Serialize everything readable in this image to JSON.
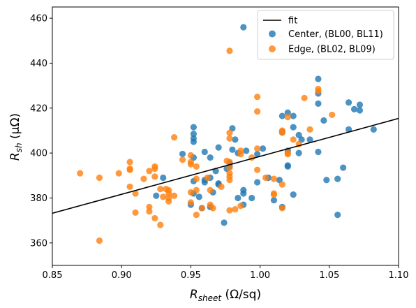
{
  "chart_data": {
    "type": "scatter",
    "xlabel_base": "R",
    "xlabel_sub": "sheet",
    "xlabel_unit": " (Ω/sq)",
    "ylabel_base": "R",
    "ylabel_sub": "sh",
    "ylabel_unit": " (μΩ)",
    "xlim": [
      0.85,
      1.1
    ],
    "ylim": [
      350,
      465
    ],
    "xticks": [
      "0.85",
      "0.90",
      "0.95",
      "1.00",
      "1.05",
      "1.10"
    ],
    "yticks": [
      "360",
      "380",
      "400",
      "420",
      "440",
      "460"
    ],
    "xtick_values": [
      0.85,
      0.9,
      0.95,
      1.0,
      1.05,
      1.1
    ],
    "ytick_values": [
      360,
      380,
      400,
      420,
      440,
      460
    ],
    "grid": false,
    "legend_position": "top-right",
    "fit": {
      "name": "fit",
      "color": "#000000",
      "points": [
        [
          0.85,
          373.2
        ],
        [
          1.1,
          415.4
        ]
      ]
    },
    "series": [
      {
        "name": "Center, (BL00, BL11)",
        "color": "#1f77b4",
        "points": [
          [
            0.925,
            381
          ],
          [
            0.93,
            389
          ],
          [
            0.944,
            399.6
          ],
          [
            0.95,
            377
          ],
          [
            0.952,
            411.5
          ],
          [
            0.952,
            408.5
          ],
          [
            0.952,
            406.5
          ],
          [
            0.952,
            405
          ],
          [
            0.952,
            398
          ],
          [
            0.952,
            387.5
          ],
          [
            0.952,
            382
          ],
          [
            0.956,
            380.5
          ],
          [
            0.958,
            375.5
          ],
          [
            0.96,
            400.5
          ],
          [
            0.96,
            388
          ],
          [
            0.96,
            387
          ],
          [
            0.964,
            398
          ],
          [
            0.964,
            389
          ],
          [
            0.964,
            376
          ],
          [
            0.966,
            382.5
          ],
          [
            0.968,
            392
          ],
          [
            0.97,
            386
          ],
          [
            0.97,
            386.5
          ],
          [
            0.97,
            402.5
          ],
          [
            0.974,
            369
          ],
          [
            0.976,
            393
          ],
          [
            0.978,
            395.5
          ],
          [
            0.978,
            394
          ],
          [
            0.98,
            411
          ],
          [
            0.98,
            401.5
          ],
          [
            0.982,
            406
          ],
          [
            0.984,
            380
          ],
          [
            0.984,
            400
          ],
          [
            0.988,
            456
          ],
          [
            0.988,
            383.5
          ],
          [
            0.988,
            382
          ],
          [
            0.988,
            377
          ],
          [
            0.99,
            401
          ],
          [
            0.994,
            380
          ],
          [
            0.998,
            387
          ],
          [
            0.998,
            399.5
          ],
          [
            1.002,
            402
          ],
          [
            1.006,
            389
          ],
          [
            1.01,
            379
          ],
          [
            1.014,
            388
          ],
          [
            1.016,
            416.5
          ],
          [
            1.016,
            409.5
          ],
          [
            1.016,
            376
          ],
          [
            1.02,
            418
          ],
          [
            1.02,
            401
          ],
          [
            1.02,
            394
          ],
          [
            1.02,
            394.5
          ],
          [
            1.024,
            416.5
          ],
          [
            1.024,
            411.5
          ],
          [
            1.024,
            381.5
          ],
          [
            1.028,
            408
          ],
          [
            1.028,
            400
          ],
          [
            1.03,
            406
          ],
          [
            1.036,
            406
          ],
          [
            1.042,
            433
          ],
          [
            1.042,
            426.5
          ],
          [
            1.042,
            422
          ],
          [
            1.042,
            400.5
          ],
          [
            1.046,
            414.5
          ],
          [
            1.048,
            388
          ],
          [
            1.056,
            388.5
          ],
          [
            1.056,
            372.5
          ],
          [
            1.06,
            393.5
          ],
          [
            1.064,
            422.5
          ],
          [
            1.064,
            410.5
          ],
          [
            1.068,
            419.5
          ],
          [
            1.072,
            421.5
          ],
          [
            1.072,
            419
          ],
          [
            1.082,
            410.5
          ]
        ]
      },
      {
        "name": "Edge, (BL02, BL09)",
        "color": "#ff7f0e",
        "points": [
          [
            0.87,
            391
          ],
          [
            0.884,
            389
          ],
          [
            0.884,
            361
          ],
          [
            0.898,
            391
          ],
          [
            0.906,
            396
          ],
          [
            0.906,
            393
          ],
          [
            0.906,
            392.5
          ],
          [
            0.906,
            385
          ],
          [
            0.91,
            382
          ],
          [
            0.91,
            373.5
          ],
          [
            0.916,
            388.5
          ],
          [
            0.92,
            392
          ],
          [
            0.92,
            376
          ],
          [
            0.92,
            374
          ],
          [
            0.924,
            394
          ],
          [
            0.924,
            393
          ],
          [
            0.924,
            389.5
          ],
          [
            0.924,
            371
          ],
          [
            0.928,
            384
          ],
          [
            0.928,
            368
          ],
          [
            0.93,
            380.5
          ],
          [
            0.932,
            384
          ],
          [
            0.934,
            383.5
          ],
          [
            0.934,
            382
          ],
          [
            0.934,
            380
          ],
          [
            0.934,
            378.5
          ],
          [
            0.938,
            407
          ],
          [
            0.938,
            381
          ],
          [
            0.944,
            397
          ],
          [
            0.95,
            399
          ],
          [
            0.95,
            396
          ],
          [
            0.95,
            395
          ],
          [
            0.95,
            382.5
          ],
          [
            0.95,
            378
          ],
          [
            0.954,
            388.5
          ],
          [
            0.954,
            394
          ],
          [
            0.954,
            383.5
          ],
          [
            0.954,
            372.5
          ],
          [
            0.958,
            375.5
          ],
          [
            0.962,
            389
          ],
          [
            0.964,
            383.5
          ],
          [
            0.964,
            377
          ],
          [
            0.966,
            375.5
          ],
          [
            0.972,
            385
          ],
          [
            0.976,
            396.5
          ],
          [
            0.978,
            445.5
          ],
          [
            0.978,
            409
          ],
          [
            0.978,
            406.5
          ],
          [
            0.978,
            396
          ],
          [
            0.978,
            393.5
          ],
          [
            0.978,
            391
          ],
          [
            0.978,
            389.5
          ],
          [
            0.978,
            388
          ],
          [
            0.978,
            374.5
          ],
          [
            0.982,
            375
          ],
          [
            0.986,
            401
          ],
          [
            0.986,
            399.5
          ],
          [
            0.986,
            376.5
          ],
          [
            0.994,
            398
          ],
          [
            0.998,
            425
          ],
          [
            0.998,
            418.5
          ],
          [
            0.998,
            402
          ],
          [
            0.998,
            392.5
          ],
          [
            1.004,
            389
          ],
          [
            1.01,
            388.5
          ],
          [
            1.01,
            382
          ],
          [
            1.01,
            381.5
          ],
          [
            1.016,
            410
          ],
          [
            1.016,
            409
          ],
          [
            1.016,
            386
          ],
          [
            1.016,
            375.5
          ],
          [
            1.02,
            400
          ],
          [
            1.02,
            399.5
          ],
          [
            1.02,
            416
          ],
          [
            1.024,
            406
          ],
          [
            1.028,
            404
          ],
          [
            1.032,
            424.5
          ],
          [
            1.036,
            410.5
          ],
          [
            1.042,
            428.5
          ],
          [
            1.042,
            427.5
          ],
          [
            1.052,
            417
          ]
        ]
      }
    ]
  }
}
